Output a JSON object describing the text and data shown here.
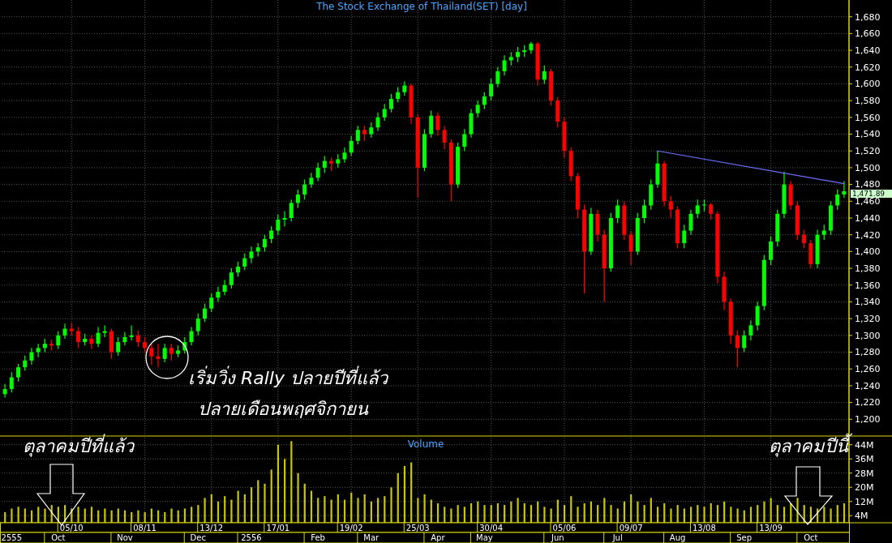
{
  "chart_data": [
    {
      "type": "candlestick",
      "title": "The Stock Exchange of Thailand(SET) [day]",
      "categories": [
        null,
        null,
        null,
        null,
        null,
        null,
        null,
        null,
        null,
        null,
        null,
        null,
        null,
        null,
        null,
        null,
        null,
        null,
        null,
        null,
        null,
        null,
        null,
        null,
        null,
        null,
        null,
        null,
        null,
        null,
        null,
        null,
        null,
        null,
        null,
        null,
        null,
        null,
        null,
        null,
        null,
        null,
        null,
        null,
        null,
        null,
        null,
        null,
        null,
        null,
        null,
        null,
        null,
        null,
        null,
        null,
        null,
        null,
        null,
        null,
        null,
        null,
        null,
        null,
        null,
        null,
        null,
        null,
        null,
        null,
        null,
        null,
        null,
        null,
        null,
        null,
        null,
        null,
        null,
        null,
        null,
        null,
        null,
        null,
        null,
        null,
        null,
        null,
        null,
        null,
        null,
        null,
        null,
        null,
        null,
        null,
        null,
        null,
        null,
        null,
        null,
        null,
        null,
        null,
        null,
        null,
        null,
        null,
        null,
        null,
        null,
        null,
        null,
        null,
        null,
        null,
        null,
        null,
        null,
        null,
        null,
        null,
        null,
        null,
        null,
        null,
        null
      ],
      "ohlc": [
        [
          1230,
          1242,
          1226,
          1236
        ],
        [
          1236,
          1256,
          1232,
          1250
        ],
        [
          1250,
          1266,
          1245,
          1262
        ],
        [
          1262,
          1276,
          1258,
          1270
        ],
        [
          1270,
          1285,
          1265,
          1280
        ],
        [
          1280,
          1290,
          1274,
          1285
        ],
        [
          1285,
          1296,
          1280,
          1290
        ],
        [
          1290,
          1295,
          1282,
          1288
        ],
        [
          1288,
          1305,
          1284,
          1300
        ],
        [
          1300,
          1314,
          1296,
          1308
        ],
        [
          1308,
          1315,
          1300,
          1305
        ],
        [
          1305,
          1310,
          1285,
          1292
        ],
        [
          1292,
          1302,
          1288,
          1296
        ],
        [
          1296,
          1300,
          1284,
          1290
        ],
        [
          1290,
          1310,
          1286,
          1303
        ],
        [
          1303,
          1312,
          1298,
          1305
        ],
        [
          1305,
          1308,
          1272,
          1280
        ],
        [
          1280,
          1298,
          1276,
          1292
        ],
        [
          1292,
          1304,
          1288,
          1298
        ],
        [
          1298,
          1312,
          1294,
          1300
        ],
        [
          1300,
          1306,
          1286,
          1292
        ],
        [
          1292,
          1298,
          1280,
          1285
        ],
        [
          1285,
          1290,
          1265,
          1275
        ],
        [
          1275,
          1290,
          1262,
          1272
        ],
        [
          1272,
          1290,
          1268,
          1285
        ],
        [
          1285,
          1290,
          1270,
          1278
        ],
        [
          1278,
          1288,
          1274,
          1282
        ],
        [
          1282,
          1298,
          1278,
          1292
        ],
        [
          1292,
          1310,
          1288,
          1305
        ],
        [
          1305,
          1326,
          1300,
          1320
        ],
        [
          1320,
          1338,
          1316,
          1332
        ],
        [
          1332,
          1350,
          1328,
          1345
        ],
        [
          1345,
          1358,
          1340,
          1352
        ],
        [
          1352,
          1366,
          1348,
          1360
        ],
        [
          1360,
          1380,
          1356,
          1375
        ],
        [
          1375,
          1388,
          1370,
          1382
        ],
        [
          1382,
          1398,
          1378,
          1392
        ],
        [
          1392,
          1406,
          1386,
          1400
        ],
        [
          1400,
          1410,
          1394,
          1405
        ],
        [
          1405,
          1420,
          1400,
          1415
        ],
        [
          1415,
          1430,
          1410,
          1425
        ],
        [
          1425,
          1444,
          1420,
          1438
        ],
        [
          1438,
          1448,
          1430,
          1440
        ],
        [
          1440,
          1462,
          1436,
          1458
        ],
        [
          1458,
          1474,
          1452,
          1468
        ],
        [
          1468,
          1486,
          1462,
          1480
        ],
        [
          1480,
          1494,
          1476,
          1488
        ],
        [
          1488,
          1506,
          1484,
          1500
        ],
        [
          1500,
          1514,
          1494,
          1508
        ],
        [
          1508,
          1512,
          1496,
          1505
        ],
        [
          1505,
          1516,
          1500,
          1510
        ],
        [
          1510,
          1524,
          1506,
          1518
        ],
        [
          1518,
          1538,
          1514,
          1532
        ],
        [
          1532,
          1550,
          1528,
          1545
        ],
        [
          1545,
          1550,
          1532,
          1540
        ],
        [
          1540,
          1554,
          1536,
          1548
        ],
        [
          1548,
          1566,
          1544,
          1560
        ],
        [
          1560,
          1576,
          1556,
          1570
        ],
        [
          1570,
          1588,
          1566,
          1582
        ],
        [
          1582,
          1596,
          1578,
          1590
        ],
        [
          1590,
          1603,
          1586,
          1598
        ],
        [
          1598,
          1600,
          1552,
          1560
        ],
        [
          1560,
          1564,
          1465,
          1500
        ],
        [
          1500,
          1546,
          1496,
          1540
        ],
        [
          1540,
          1568,
          1536,
          1562
        ],
        [
          1562,
          1566,
          1538,
          1545
        ],
        [
          1545,
          1550,
          1522,
          1530
        ],
        [
          1530,
          1534,
          1460,
          1480
        ],
        [
          1480,
          1530,
          1476,
          1525
        ],
        [
          1525,
          1546,
          1520,
          1540
        ],
        [
          1540,
          1570,
          1536,
          1565
        ],
        [
          1565,
          1580,
          1560,
          1575
        ],
        [
          1575,
          1590,
          1570,
          1585
        ],
        [
          1585,
          1606,
          1580,
          1600
        ],
        [
          1600,
          1620,
          1596,
          1615
        ],
        [
          1615,
          1634,
          1610,
          1628
        ],
        [
          1628,
          1638,
          1622,
          1632
        ],
        [
          1632,
          1644,
          1626,
          1638
        ],
        [
          1638,
          1646,
          1632,
          1640
        ],
        [
          1640,
          1650,
          1636,
          1648
        ],
        [
          1648,
          1650,
          1598,
          1605
        ],
        [
          1605,
          1622,
          1600,
          1615
        ],
        [
          1615,
          1618,
          1574,
          1580
        ],
        [
          1580,
          1584,
          1548,
          1555
        ],
        [
          1555,
          1560,
          1512,
          1520
        ],
        [
          1520,
          1524,
          1484,
          1490
        ],
        [
          1490,
          1494,
          1440,
          1450
        ],
        [
          1450,
          1456,
          1350,
          1400
        ],
        [
          1400,
          1452,
          1396,
          1445
        ],
        [
          1445,
          1450,
          1412,
          1420
        ],
        [
          1420,
          1426,
          1340,
          1380
        ],
        [
          1380,
          1446,
          1376,
          1440
        ],
        [
          1440,
          1462,
          1434,
          1455
        ],
        [
          1455,
          1460,
          1414,
          1420
        ],
        [
          1420,
          1424,
          1384,
          1400
        ],
        [
          1400,
          1446,
          1396,
          1440
        ],
        [
          1440,
          1462,
          1434,
          1455
        ],
        [
          1455,
          1486,
          1450,
          1480
        ],
        [
          1480,
          1520,
          1476,
          1505
        ],
        [
          1505,
          1508,
          1454,
          1460
        ],
        [
          1460,
          1466,
          1440,
          1450
        ],
        [
          1450,
          1454,
          1404,
          1410
        ],
        [
          1410,
          1432,
          1404,
          1425
        ],
        [
          1425,
          1450,
          1420,
          1445
        ],
        [
          1445,
          1462,
          1440,
          1455
        ],
        [
          1455,
          1462,
          1448,
          1456
        ],
        [
          1456,
          1458,
          1438,
          1445
        ],
        [
          1445,
          1448,
          1362,
          1370
        ],
        [
          1370,
          1376,
          1330,
          1340
        ],
        [
          1340,
          1344,
          1290,
          1300
        ],
        [
          1300,
          1306,
          1262,
          1285
        ],
        [
          1285,
          1306,
          1280,
          1300
        ],
        [
          1300,
          1318,
          1294,
          1312
        ],
        [
          1312,
          1340,
          1306,
          1335
        ],
        [
          1335,
          1396,
          1330,
          1390
        ],
        [
          1390,
          1418,
          1384,
          1412
        ],
        [
          1412,
          1450,
          1406,
          1445
        ],
        [
          1445,
          1495,
          1440,
          1480
        ],
        [
          1480,
          1484,
          1450,
          1455
        ],
        [
          1455,
          1460,
          1414,
          1420
        ],
        [
          1420,
          1426,
          1404,
          1410
        ],
        [
          1410,
          1414,
          1380,
          1385
        ],
        [
          1385,
          1426,
          1380,
          1420
        ],
        [
          1420,
          1432,
          1414,
          1425
        ],
        [
          1425,
          1460,
          1420,
          1455
        ],
        [
          1455,
          1474,
          1450,
          1468
        ],
        [
          1468,
          1484,
          1464,
          1471.89
        ]
      ],
      "colors": [
        "#00ff00",
        "#00ff00",
        "#00ff00",
        "#00ff00",
        "#00ff00",
        "#00ff00",
        "#00ff00",
        "#ff0000",
        "#00ff00",
        "#00ff00",
        "#ff0000",
        "#ff0000",
        "#00ff00",
        "#ff0000",
        "#00ff00",
        "#00ff00",
        "#ff0000",
        "#00ff00",
        "#00ff00",
        "#00ff00",
        "#ff0000",
        "#ff0000",
        "#ff0000",
        "#ff0000",
        "#00ff00",
        "#ff0000",
        "#00ff00",
        "#00ff00",
        "#00ff00",
        "#00ff00",
        "#00ff00",
        "#00ff00",
        "#00ff00",
        "#00ff00",
        "#00ff00",
        "#00ff00",
        "#00ff00",
        "#00ff00",
        "#00ff00",
        "#00ff00",
        "#00ff00",
        "#00ff00",
        "#00ff00",
        "#00ff00",
        "#00ff00",
        "#00ff00",
        "#00ff00",
        "#00ff00",
        "#00ff00",
        "#ff0000",
        "#00ff00",
        "#00ff00",
        "#00ff00",
        "#00ff00",
        "#ff0000",
        "#00ff00",
        "#00ff00",
        "#00ff00",
        "#00ff00",
        "#00ff00",
        "#00ff00",
        "#ff0000",
        "#ff0000",
        "#00ff00",
        "#00ff00",
        "#ff0000",
        "#ff0000",
        "#ff0000",
        "#00ff00",
        "#00ff00",
        "#00ff00",
        "#00ff00",
        "#00ff00",
        "#00ff00",
        "#00ff00",
        "#00ff00",
        "#00ff00",
        "#00ff00",
        "#00ff00",
        "#00ff00",
        "#ff0000",
        "#00ff00",
        "#ff0000",
        "#ff0000",
        "#ff0000",
        "#ff0000",
        "#ff0000",
        "#ff0000",
        "#00ff00",
        "#ff0000",
        "#ff0000",
        "#00ff00",
        "#00ff00",
        "#ff0000",
        "#ff0000",
        "#00ff00",
        "#00ff00",
        "#00ff00",
        "#00ff00",
        "#ff0000",
        "#ff0000",
        "#ff0000",
        "#00ff00",
        "#00ff00",
        "#00ff00",
        "#00ff00",
        "#ff0000",
        "#ff0000",
        "#ff0000",
        "#ff0000",
        "#ff0000",
        "#00ff00",
        "#00ff00",
        "#00ff00",
        "#00ff00",
        "#00ff00",
        "#00ff00",
        "#00ff00",
        "#ff0000",
        "#ff0000",
        "#ff0000",
        "#ff0000",
        "#00ff00",
        "#00ff00",
        "#00ff00",
        "#00ff00",
        "#00ff00"
      ],
      "series": [
        {
          "type": "line",
          "color": "#7070ff",
          "values": [
            null,
            null,
            null,
            null,
            null,
            null,
            null,
            null,
            null,
            null,
            null,
            null,
            null,
            null,
            null,
            null,
            null,
            null,
            null,
            null,
            null,
            null,
            null,
            null,
            null,
            null,
            null,
            null,
            null,
            null,
            null,
            null,
            null,
            null,
            null,
            null,
            null,
            null,
            null,
            null,
            null,
            null,
            null,
            null,
            null,
            null,
            null,
            null,
            null,
            null,
            null,
            null,
            null,
            null,
            null,
            null,
            null,
            null,
            null,
            null,
            null,
            null,
            null,
            null,
            null,
            null,
            null,
            null,
            null,
            null,
            null,
            null,
            null,
            null,
            null,
            null,
            null,
            null,
            null,
            null,
            null,
            null,
            null,
            null,
            null,
            null,
            null,
            null,
            null,
            null,
            null,
            null,
            null,
            null,
            null,
            null,
            null,
            null,
            1520,
            null,
            null,
            null,
            null,
            null,
            null,
            null,
            null,
            null,
            null,
            null,
            null,
            null,
            null,
            null,
            null,
            null,
            null,
            null,
            null,
            null,
            null,
            null,
            null,
            null,
            null,
            null,
            1481
          ]
        }
      ],
      "ylim": [
        1180,
        1700
      ],
      "yticks": [
        {
          "value": 1200,
          "label": "1,200"
        },
        {
          "value": 1220,
          "label": "1,220"
        },
        {
          "value": 1240,
          "label": "1,240"
        },
        {
          "value": 1260,
          "label": "1,260"
        },
        {
          "value": 1280,
          "label": "1,280"
        },
        {
          "value": 1300,
          "label": "1,300"
        },
        {
          "value": 1320,
          "label": "1,320"
        },
        {
          "value": 1340,
          "label": "1,340"
        },
        {
          "value": 1360,
          "label": "1,360"
        },
        {
          "value": 1380,
          "label": "1,380"
        },
        {
          "value": 1400,
          "label": "1,400"
        },
        {
          "value": 1420,
          "label": "1,420"
        },
        {
          "value": 1440,
          "label": "1,440"
        },
        {
          "value": 1460,
          "label": "1,460"
        },
        {
          "value": 1480,
          "label": "1,480"
        },
        {
          "value": 1500,
          "label": "1,500"
        },
        {
          "value": 1520,
          "label": "1,520"
        },
        {
          "value": 1540,
          "label": "1,540"
        },
        {
          "value": 1560,
          "label": "1,560"
        },
        {
          "value": 1580,
          "label": "1,580"
        },
        {
          "value": 1600,
          "label": "1,600"
        },
        {
          "value": 1620,
          "label": "1,620"
        },
        {
          "value": 1640,
          "label": "1,640"
        },
        {
          "value": 1660,
          "label": "1,660"
        },
        {
          "value": 1680,
          "label": "1,680"
        }
      ],
      "grid": true,
      "tick_labels": "y",
      "annotations": [
        "เริ่มวิ่ง Rally ปลายปีที่แล้ว",
        "ปลายเดือนพฤศจิกายน",
        "1,471.89"
      ]
    },
    {
      "type": "bar",
      "title": "Volume",
      "color": "#c8c800",
      "categories": [
        null,
        "2555",
        null,
        null,
        null,
        null,
        null,
        null,
        "Oct",
        null,
        "05/10",
        null,
        null,
        null,
        null,
        null,
        null,
        null,
        "Nov",
        null,
        null,
        "08/11",
        null,
        null,
        null,
        null,
        null,
        null,
        null,
        "Dec",
        null,
        "13/12",
        null,
        null,
        null,
        null,
        null,
        "2556",
        null,
        null,
        null,
        "17/01",
        null,
        null,
        null,
        null,
        null,
        "Feb",
        null,
        null,
        null,
        null,
        "19/02",
        null,
        null,
        "Mar",
        null,
        null,
        null,
        null,
        null,
        null,
        "25/03",
        null,
        null,
        "Apr",
        null,
        null,
        null,
        null,
        null,
        null,
        "May",
        "30/04",
        null,
        null,
        null,
        null,
        null,
        null,
        null,
        null,
        null,
        "Jun",
        "05/06",
        null,
        null,
        null,
        null,
        null,
        null,
        null,
        "Jul",
        null,
        "09/07",
        null,
        null,
        null,
        null,
        null,
        null,
        "Aug",
        null,
        null,
        null,
        "13/08",
        null,
        null,
        null,
        null,
        null,
        "Sep",
        null,
        null,
        null,
        "13/09",
        null,
        null,
        null,
        null,
        null,
        "Oct",
        null,
        null,
        null,
        null,
        null
      ],
      "values": [
        6,
        8,
        9,
        8,
        7,
        9,
        8,
        10,
        9,
        10,
        8,
        9,
        8,
        9,
        7,
        8,
        7,
        8,
        7,
        6,
        7,
        6,
        8,
        7,
        6,
        8,
        7,
        8,
        9,
        10,
        14,
        16,
        12,
        15,
        13,
        18,
        16,
        20,
        24,
        22,
        30,
        44,
        36,
        46,
        28,
        22,
        18,
        14,
        15,
        13,
        16,
        13,
        17,
        14,
        16,
        12,
        14,
        15,
        20,
        28,
        32,
        34,
        14,
        16,
        13,
        11,
        9,
        8,
        10,
        9,
        11,
        12,
        10,
        10,
        11,
        10,
        12,
        14,
        11,
        10,
        12,
        9,
        8,
        13,
        10,
        15,
        9,
        11,
        12,
        10,
        14,
        10,
        8,
        12,
        16,
        12,
        10,
        14,
        9,
        11,
        8,
        10,
        8,
        9,
        10,
        9,
        11,
        10,
        12,
        9,
        8,
        7,
        9,
        10,
        12,
        14,
        10,
        9,
        11,
        14,
        10,
        9,
        8,
        9,
        8,
        10,
        11
      ],
      "ylim": [
        0,
        48
      ],
      "yticks": [
        {
          "value": 4,
          "label": "4M"
        },
        {
          "value": 12,
          "label": "12M"
        },
        {
          "value": 20,
          "label": "20M"
        },
        {
          "value": 28,
          "label": "28M"
        },
        {
          "value": 36,
          "label": "36M"
        },
        {
          "value": 44,
          "label": "44M"
        }
      ],
      "grid": true,
      "annotations": [
        "ตุลาคมปีที่แล้ว",
        "ตุลาคมปีนี้"
      ]
    }
  ]
}
